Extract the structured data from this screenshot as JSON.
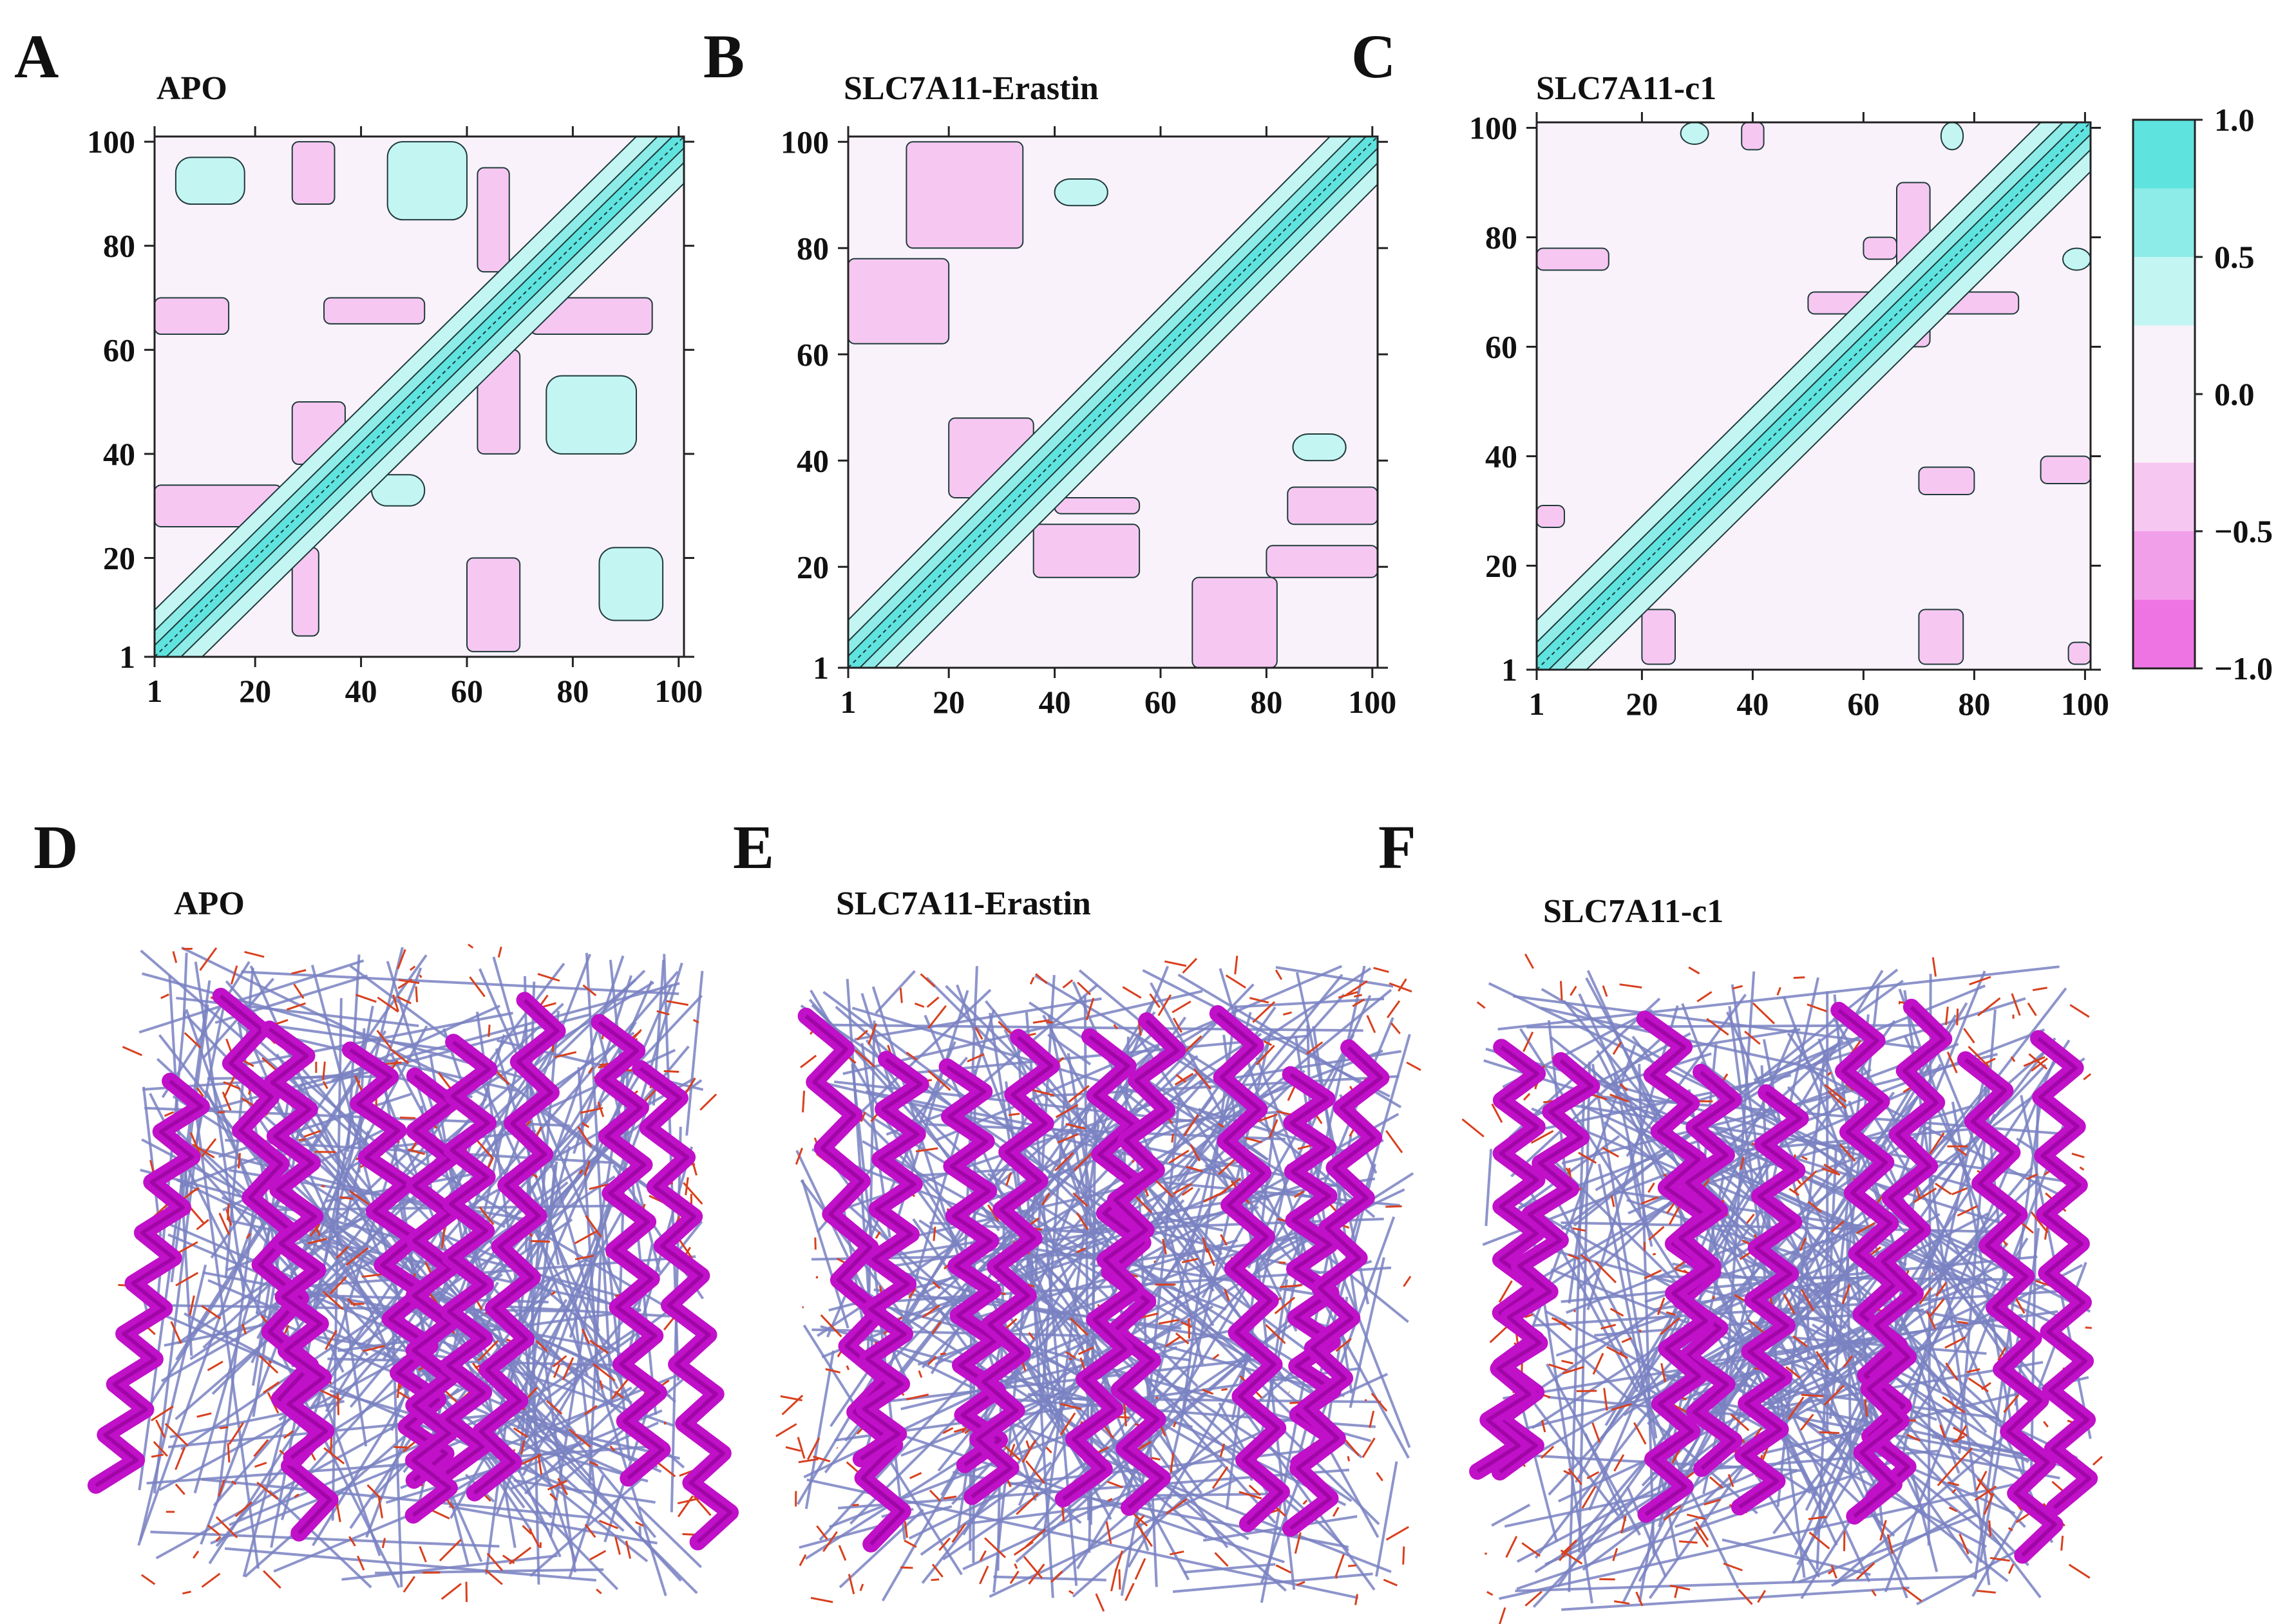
{
  "panels": [
    {
      "letter": "A",
      "title": "APO"
    },
    {
      "letter": "B",
      "title": "SLC7A11-Erastin"
    },
    {
      "letter": "C",
      "title": "SLC7A11-c1"
    },
    {
      "letter": "D",
      "title": "APO"
    },
    {
      "letter": "E",
      "title": "SLC7A11-Erastin"
    },
    {
      "letter": "F",
      "title": "SLC7A11-c1"
    }
  ],
  "chart_data": [
    {
      "type": "heatmap",
      "title": "APO",
      "x_ticks": [
        "1",
        "20",
        "40",
        "60",
        "80",
        "100"
      ],
      "y_ticks": [
        "1",
        "20",
        "40",
        "60",
        "80",
        "100"
      ],
      "xlim": [
        1,
        101
      ],
      "ylim": [
        1,
        101
      ],
      "diagonal_value": 1.0,
      "positive_regions": [
        {
          "x": [
            5,
            18
          ],
          "y": [
            88,
            97
          ],
          "value": 0.3
        },
        {
          "x": [
            45,
            60
          ],
          "y": [
            85,
            100
          ],
          "value": 0.3
        },
        {
          "x": [
            75,
            92
          ],
          "y": [
            40,
            55
          ],
          "value": 0.4
        },
        {
          "x": [
            85,
            97
          ],
          "y": [
            8,
            22
          ],
          "value": 0.3
        },
        {
          "x": [
            42,
            52
          ],
          "y": [
            30,
            36
          ],
          "value": 0.3
        }
      ],
      "negative_regions": [
        {
          "x": [
            1,
            15
          ],
          "y": [
            63,
            70
          ],
          "value": -0.4
        },
        {
          "x": [
            1,
            25
          ],
          "y": [
            26,
            34
          ],
          "value": -0.4
        },
        {
          "x": [
            60,
            70
          ],
          "y": [
            2,
            20
          ],
          "value": -0.4
        },
        {
          "x": [
            27,
            37
          ],
          "y": [
            38,
            50
          ],
          "value": -0.4
        },
        {
          "x": [
            62,
            68
          ],
          "y": [
            75,
            95
          ],
          "value": -0.4
        },
        {
          "x": [
            33,
            52
          ],
          "y": [
            65,
            70
          ],
          "value": -0.4
        },
        {
          "x": [
            27,
            35
          ],
          "y": [
            88,
            100
          ],
          "value": -0.3
        },
        {
          "x": [
            72,
            95
          ],
          "y": [
            63,
            70
          ],
          "value": -0.4
        },
        {
          "x": [
            62,
            70
          ],
          "y": [
            40,
            60
          ],
          "value": -0.3
        },
        {
          "x": [
            27,
            32
          ],
          "y": [
            5,
            22
          ],
          "value": -0.3
        }
      ]
    },
    {
      "type": "heatmap",
      "title": "SLC7A11-Erastin",
      "x_ticks": [
        "1",
        "20",
        "40",
        "60",
        "80",
        "100"
      ],
      "y_ticks": [
        "1",
        "20",
        "40",
        "60",
        "80",
        "100"
      ],
      "xlim": [
        1,
        101
      ],
      "ylim": [
        1,
        101
      ],
      "diagonal_value": 1.0,
      "positive_regions": [
        {
          "x": [
            40,
            50
          ],
          "y": [
            88,
            93
          ],
          "value": 0.3
        },
        {
          "x": [
            85,
            95
          ],
          "y": [
            40,
            45
          ],
          "value": 0.3
        }
      ],
      "negative_regions": [
        {
          "x": [
            1,
            20
          ],
          "y": [
            62,
            78
          ],
          "value": -0.4
        },
        {
          "x": [
            20,
            36
          ],
          "y": [
            33,
            48
          ],
          "value": -0.4
        },
        {
          "x": [
            12,
            34
          ],
          "y": [
            80,
            100
          ],
          "value": -0.3
        },
        {
          "x": [
            66,
            82
          ],
          "y": [
            1,
            18
          ],
          "value": -0.4
        },
        {
          "x": [
            80,
            101
          ],
          "y": [
            18,
            24
          ],
          "value": -0.4
        },
        {
          "x": [
            36,
            56
          ],
          "y": [
            18,
            28
          ],
          "value": -0.3
        },
        {
          "x": [
            84,
            101
          ],
          "y": [
            28,
            35
          ],
          "value": -0.4
        },
        {
          "x": [
            40,
            56
          ],
          "y": [
            30,
            33
          ],
          "value": -0.3
        }
      ]
    },
    {
      "type": "heatmap",
      "title": "SLC7A11-c1",
      "x_ticks": [
        "1",
        "20",
        "40",
        "60",
        "80",
        "100"
      ],
      "y_ticks": [
        "1",
        "20",
        "40",
        "60",
        "80",
        "100"
      ],
      "xlim": [
        1,
        101
      ],
      "ylim": [
        1,
        101
      ],
      "diagonal_value": 1.0,
      "positive_regions": [
        {
          "x": [
            27,
            32
          ],
          "y": [
            97,
            101
          ],
          "value": 0.3
        },
        {
          "x": [
            74,
            78
          ],
          "y": [
            96,
            101
          ],
          "value": 0.3
        },
        {
          "x": [
            96,
            101
          ],
          "y": [
            74,
            78
          ],
          "value": 0.3
        }
      ],
      "negative_regions": [
        {
          "x": [
            1,
            14
          ],
          "y": [
            74,
            78
          ],
          "value": -0.3
        },
        {
          "x": [
            38,
            42
          ],
          "y": [
            96,
            101
          ],
          "value": -0.3
        },
        {
          "x": [
            66,
            72
          ],
          "y": [
            60,
            90
          ],
          "value": -0.4
        },
        {
          "x": [
            50,
            66
          ],
          "y": [
            66,
            70
          ],
          "value": -0.3
        },
        {
          "x": [
            72,
            88
          ],
          "y": [
            66,
            70
          ],
          "value": -0.3
        },
        {
          "x": [
            60,
            66
          ],
          "y": [
            76,
            80
          ],
          "value": -0.3
        },
        {
          "x": [
            1,
            6
          ],
          "y": [
            27,
            31
          ],
          "value": -0.3
        },
        {
          "x": [
            70,
            80
          ],
          "y": [
            33,
            38
          ],
          "value": -0.3
        },
        {
          "x": [
            92,
            101
          ],
          "y": [
            35,
            40
          ],
          "value": -0.3
        },
        {
          "x": [
            70,
            78
          ],
          "y": [
            2,
            12
          ],
          "value": -0.3
        },
        {
          "x": [
            97,
            101
          ],
          "y": [
            2,
            6
          ],
          "value": -0.3
        },
        {
          "x": [
            20,
            26
          ],
          "y": [
            2,
            12
          ],
          "value": -0.3
        }
      ]
    }
  ],
  "colorbar": {
    "ticks": [
      "1.0",
      "0.5",
      "0.0",
      "−0.5",
      "−1.0"
    ],
    "levels": [
      1.0,
      0.75,
      0.5,
      0.25,
      -0.25,
      -0.5,
      -0.75,
      -1.0
    ],
    "bands": [
      "#5fe3df",
      "#8dece8",
      "#c3f5f3",
      "#f9f2fa",
      "#f6c8f1",
      "#f29fea",
      "#ee74e4"
    ]
  },
  "colors": {
    "diag_strong": "#5fe3df",
    "diag_mid": "#8dece8",
    "diag_weak": "#c3f5f3",
    "background": "#f9f2fa",
    "neg": "#f6c8f1",
    "contour": "#1f3a3a",
    "helix": "#c010c8",
    "helix_dark": "#8a0090",
    "link_orange": "#d8401e",
    "link_blue": "#7a82c2"
  }
}
